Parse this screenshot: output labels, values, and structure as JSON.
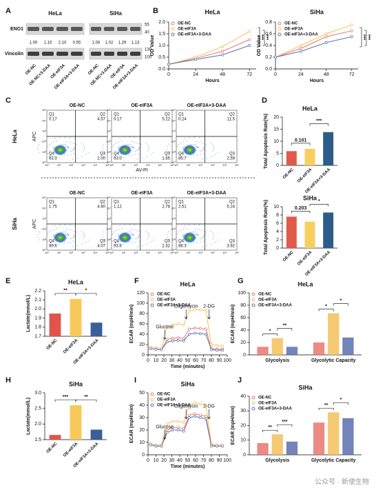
{
  "panels": [
    "A",
    "B",
    "C",
    "D",
    "E",
    "F",
    "G",
    "H",
    "I",
    "J"
  ],
  "blots": {
    "cells": [
      "HeLa",
      "SiHa"
    ],
    "proteins": [
      "ENO1",
      "Vincolin"
    ],
    "quant": [
      [
        "1.00",
        "1.10",
        "2.10",
        "0.55"
      ],
      [
        "1.00",
        "1.02",
        "1.29",
        "1.13"
      ]
    ],
    "markers": [
      [
        "55",
        "40"
      ],
      [
        "130",
        "100"
      ]
    ],
    "lanes": [
      [
        "OE-NC",
        "OE-NC+3-DAA",
        "OE-eIF3A",
        "OE-eIF3A+3-DAA"
      ],
      [
        "OE-NC",
        "OE-NC+3-DAA",
        "OE-eIF3A",
        "OE-eIF3A+3-DAA"
      ]
    ]
  },
  "flow": {
    "xlabel": "AV-PI",
    "ylabel": "APC",
    "quadrants": [
      "Q1",
      "Q2",
      "Q3",
      "Q4"
    ],
    "ticks": [
      "10⁰",
      "10¹",
      "10²",
      "10³",
      "10⁴",
      "10⁵"
    ],
    "rows": [
      {
        "name": "HeLa",
        "plots": [
          {
            "title": "OE-NC",
            "q": [
              "0.17",
              "4.57",
              "2.00",
              "93.3"
            ]
          },
          {
            "title": "OE-eIF3A",
            "q": [
              "0.17",
              "5.22",
              "1.65",
              "93.0"
            ]
          },
          {
            "title": "OE-eIF3A+3-DAA",
            "q": [
              "0.24",
              "11.5",
              "2.59",
              "85.7"
            ]
          }
        ]
      },
      {
        "name": "SiHa",
        "plots": [
          {
            "title": "OE-NC",
            "q": [
              "1.75",
              "4.60",
              "4.07",
              "89.6"
            ]
          },
          {
            "title": "OE-eIF3A",
            "q": [
              "1.12",
              "2.78",
              "2.32",
              "93.8"
            ]
          },
          {
            "title": "OE-eIF3A+3-DAA",
            "q": [
              "2.51",
              "5.24",
              "3.92",
              "88.3"
            ]
          }
        ]
      }
    ]
  },
  "chart_data": [
    {
      "type": "line",
      "title": "HeLa",
      "ylabel": "OD Value",
      "xlabel": "Hours",
      "x": [
        0,
        24,
        48,
        72
      ],
      "xlim": [
        0,
        78
      ],
      "xticks": [
        0,
        24,
        48,
        72
      ],
      "ylim": [
        0,
        2
      ],
      "yticks": [
        {
          "value": 0,
          "label": "0.0"
        },
        0.5,
        {
          "value": 1,
          "label": "1.0"
        },
        1.5,
        {
          "value": 2,
          "label": "2.0"
        }
      ],
      "series": [
        {
          "name": "OE-NC",
          "color": "#e8776f",
          "values": [
            0.2,
            0.45,
            0.75,
            1.25
          ]
        },
        {
          "name": "OE-eIF3A",
          "color": "#f5c15b",
          "values": [
            0.2,
            0.5,
            0.95,
            1.6
          ]
        },
        {
          "name": "OE-eIF3A+3-DAA",
          "color": "#5b6fae",
          "values": [
            0.2,
            0.4,
            0.6,
            1.0
          ]
        }
      ],
      "annotations": [
        "***",
        "***"
      ]
    },
    {
      "type": "line",
      "title": "SiHa",
      "ylabel": "OD Value",
      "xlabel": "Hours",
      "x": [
        0,
        24,
        48,
        72
      ],
      "xlim": [
        0,
        78
      ],
      "xticks": [
        0,
        24,
        48,
        72
      ],
      "ylim": [
        0,
        0.8
      ],
      "yticks": [
        {
          "value": 0,
          "label": "0.0"
        },
        0.2,
        0.4,
        0.6,
        0.8
      ],
      "series": [
        {
          "name": "OE-NC",
          "color": "#e8776f",
          "values": [
            0.2,
            0.35,
            0.55,
            0.65
          ]
        },
        {
          "name": "OE-eIF3A",
          "color": "#f5c15b",
          "values": [
            0.2,
            0.4,
            0.6,
            0.75
          ]
        },
        {
          "name": "OE-eIF3A+3-DAA",
          "color": "#5b6fae",
          "values": [
            0.2,
            0.3,
            0.45,
            0.55
          ]
        }
      ],
      "annotations": [
        "***",
        "***"
      ]
    },
    {
      "type": "bar",
      "title": "HeLa",
      "ylabel": "Total Apoptosis Rate(%)",
      "categories": [
        "OE-NC",
        "OE-eIF3A",
        "OE-eIF3A+3-DAA"
      ],
      "values": [
        5.9,
        6.9,
        13.8
      ],
      "colors": [
        "#e05a4a",
        "#f7cf5e",
        "#2e5c8a"
      ],
      "ylim": [
        0,
        20
      ],
      "yticks": [
        0,
        5,
        10,
        15,
        20
      ],
      "annotations": [
        "0.101",
        "***"
      ]
    },
    {
      "type": "bar",
      "title": "SiHa",
      "ylabel": "Total Apoptosis Rate(%)",
      "categories": [
        "OE-NC",
        "OE-eIF3A",
        "OE-eIF3A+3-DAA"
      ],
      "values": [
        7.6,
        6.4,
        8.6
      ],
      "colors": [
        "#e05a4a",
        "#f7cf5e",
        "#2e5c8a"
      ],
      "ylim": [
        0,
        10
      ],
      "yticks": [
        0,
        2,
        4,
        6,
        8,
        10
      ],
      "annotations": [
        "0.203",
        "*"
      ]
    },
    {
      "type": "bar",
      "title": "HeLa",
      "ylabel": "Lactate(mmol/L)",
      "categories": [
        "OE-NC",
        "OE-eIF3A",
        "OE-eIF3A+3-DAA"
      ],
      "values": [
        1.95,
        2.11,
        1.85
      ],
      "colors": [
        "#e0544c",
        "#f8c95a",
        "#3a5e9a"
      ],
      "ylim": [
        1.7,
        2.2
      ],
      "yticks": [
        1.7,
        1.8,
        1.9,
        {
          "value": 2,
          "label": "2.0"
        },
        2.1,
        2.2
      ],
      "annotations": [
        "**",
        "*"
      ]
    },
    {
      "type": "line",
      "title": "HeLa",
      "ylabel": "ECAR (mpH/min)",
      "xlabel": "Time (minutes)",
      "x": [
        3,
        10,
        17,
        24,
        31,
        38,
        45,
        52,
        59,
        66,
        73,
        80,
        87,
        94
      ],
      "xlim": [
        0,
        100
      ],
      "xticks": [
        0,
        10,
        20,
        30,
        40,
        50,
        60,
        70,
        80,
        90,
        100
      ],
      "ylim": [
        0,
        120
      ],
      "yticks": [
        0,
        20,
        40,
        60,
        80,
        100,
        120
      ],
      "series": [
        {
          "name": "OE-NC",
          "color": "#e8776f",
          "values": [
            12,
            11,
            10,
            30,
            32,
            33,
            32,
            50,
            52,
            51,
            50,
            12,
            11,
            11
          ]
        },
        {
          "name": "OE-eIF3A",
          "color": "#f5c15b",
          "values": [
            15,
            14,
            13,
            55,
            58,
            60,
            58,
            85,
            88,
            87,
            86,
            20,
            18,
            17
          ]
        },
        {
          "name": "OE-eIF3A+3-DAA",
          "color": "#5b6fae",
          "values": [
            12,
            11,
            10,
            25,
            27,
            28,
            27,
            40,
            42,
            41,
            40,
            10,
            9,
            9
          ]
        }
      ],
      "annotations": [
        "Glucose",
        "Oligomycin",
        "2-DG"
      ]
    },
    {
      "type": "bar",
      "title": "HeLa",
      "ylabel": "ECAR (mpH/min)",
      "categories": [
        "Glycolysis",
        "Glycolytic Capacity"
      ],
      "ylim": [
        0,
        100
      ],
      "yticks": [
        0,
        20,
        40,
        60,
        80,
        100
      ],
      "series": [
        {
          "name": "OE-NC",
          "color": "#e8776f",
          "values": [
            13,
            20
          ]
        },
        {
          "name": "OE-eIF3A",
          "color": "#f5c15b",
          "values": [
            27,
            67
          ]
        },
        {
          "name": "OE-eIF3A+3-DAA",
          "color": "#5b6fae",
          "values": [
            13,
            28
          ]
        }
      ],
      "annotations": [
        "*",
        "**",
        "*",
        "*"
      ]
    },
    {
      "type": "bar",
      "title": "SiHa",
      "ylabel": "Lactate(mmol/L)",
      "categories": [
        "OE-NC",
        "OE-eIF3A",
        "OE-eIF3A+3-DAA"
      ],
      "values": [
        1.65,
        2.6,
        1.82
      ],
      "colors": [
        "#e0544c",
        "#f8c95a",
        "#3a5e9a"
      ],
      "ylim": [
        1.5,
        3
      ],
      "yticks": [
        1.5,
        {
          "value": 2,
          "label": "2.0"
        },
        2.5,
        {
          "value": 3,
          "label": "3.0"
        }
      ],
      "annotations": [
        "***",
        "**"
      ]
    },
    {
      "type": "line",
      "title": "SiHa",
      "ylabel": "ECAR (mpH/min)",
      "xlabel": "Time (minutes)",
      "x": [
        3,
        10,
        17,
        24,
        31,
        38,
        45,
        52,
        59,
        66,
        73,
        80,
        87,
        94
      ],
      "xlim": [
        0,
        100
      ],
      "xticks": [
        0,
        10,
        20,
        30,
        40,
        50,
        60,
        70,
        80,
        90,
        100
      ],
      "ylim": [
        0,
        50
      ],
      "yticks": [
        0,
        10,
        20,
        30,
        40,
        50
      ],
      "series": [
        {
          "name": "OE-NC",
          "color": "#e8776f",
          "values": [
            8,
            7,
            7,
            20,
            22,
            22,
            21,
            32,
            33,
            32,
            31,
            8,
            7,
            7
          ]
        },
        {
          "name": "OE-eIF3A",
          "color": "#f5c15b",
          "values": [
            9,
            8,
            8,
            25,
            27,
            27,
            26,
            40,
            42,
            41,
            40,
            9,
            8,
            8
          ]
        },
        {
          "name": "OE-eIF3A+3-DAA",
          "color": "#5b6fae",
          "values": [
            8,
            7,
            7,
            18,
            20,
            20,
            19,
            30,
            31,
            30,
            29,
            7,
            7,
            7
          ]
        }
      ],
      "annotations": [
        "Glucose",
        "Oligomycin",
        "2-DG"
      ]
    },
    {
      "type": "bar",
      "title": "SiHa",
      "ylabel": "ECAR (mpH/min)",
      "categories": [
        "Glycolysis",
        "Glycolytic Capacity"
      ],
      "ylim": [
        0,
        40
      ],
      "yticks": [
        0,
        10,
        20,
        30,
        40
      ],
      "series": [
        {
          "name": "OE-NC",
          "color": "#e8776f",
          "values": [
            8,
            22
          ]
        },
        {
          "name": "OE-eIF3A",
          "color": "#f5c15b",
          "values": [
            14,
            29
          ]
        },
        {
          "name": "OE-eIF3A+3-DAA",
          "color": "#5b6fae",
          "values": [
            9,
            25
          ]
        }
      ],
      "annotations": [
        "**",
        "***",
        "**",
        "*"
      ]
    }
  ],
  "watermark": "公众号 · 新使生物"
}
